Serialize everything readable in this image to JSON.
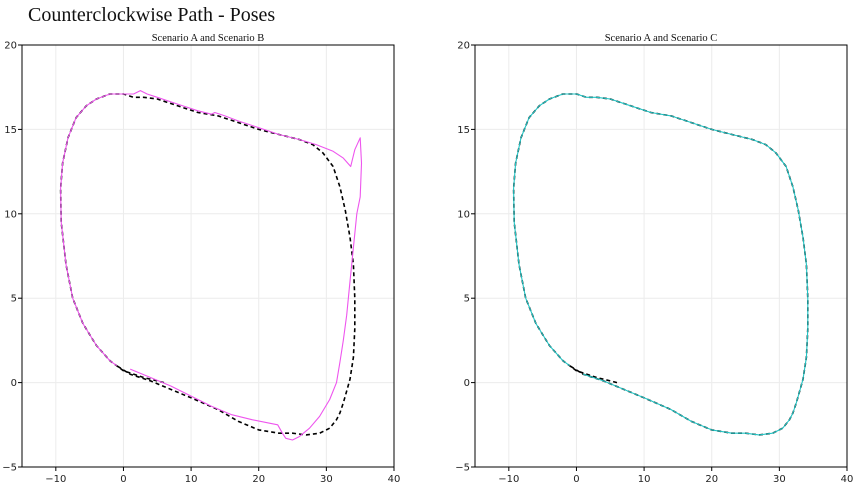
{
  "title": "Counterclockwise Path - Poses",
  "chart_data": [
    {
      "type": "line",
      "title": "Scenario A and Scenario B",
      "xlim": [
        -15,
        40
      ],
      "ylim": [
        -5,
        20
      ],
      "xticks": [
        -10,
        0,
        10,
        20,
        30,
        40
      ],
      "yticks": [
        -5,
        0,
        5,
        10,
        15,
        20
      ],
      "grid": true,
      "series": [
        {
          "color": "#000000",
          "style": "dashed",
          "x": [
            6,
            3,
            0,
            -2,
            -4,
            -6,
            -7.5,
            -8.5,
            -9.2,
            -9.3,
            -9,
            -8.2,
            -7,
            -5.5,
            -4,
            -2,
            0,
            1.5,
            3,
            5,
            8,
            11,
            14,
            17,
            20,
            23,
            26,
            28,
            29.5,
            31,
            32,
            32.8,
            33.5,
            34,
            34.2,
            34.2,
            34,
            33.5,
            33,
            32.5,
            32,
            31.5,
            30.5,
            29,
            27,
            25,
            23,
            20,
            17,
            14,
            10,
            7,
            4,
            1,
            -1
          ],
          "y": [
            0,
            0.3,
            0.7,
            1.3,
            2.2,
            3.5,
            5,
            7,
            9.5,
            11.5,
            13,
            14.5,
            15.7,
            16.4,
            16.8,
            17.1,
            17.1,
            16.9,
            16.9,
            16.8,
            16.4,
            16,
            15.8,
            15.4,
            15,
            14.7,
            14.4,
            14.1,
            13.6,
            12.8,
            11.6,
            10.2,
            8.6,
            7,
            5,
            3.2,
            1.5,
            0.2,
            -0.5,
            -1.2,
            -1.8,
            -2.2,
            -2.7,
            -3,
            -3.1,
            -3,
            -3,
            -2.8,
            -2.3,
            -1.6,
            -0.9,
            -0.4,
            0.1,
            0.5,
            1
          ]
        },
        {
          "color": "#ee55ee",
          "style": "solid",
          "x": [
            -1,
            -2,
            -4,
            -6,
            -7.5,
            -8.5,
            -9.2,
            -9.3,
            -9,
            -8.2,
            -7,
            -5.5,
            -4,
            -2,
            0,
            1.5,
            2.5,
            3.5,
            5,
            8,
            11,
            13,
            13.5,
            15,
            17,
            20,
            23,
            26,
            28.5,
            31,
            32.5,
            33.6,
            34.2,
            35,
            35.2,
            35,
            34.5,
            34,
            33.5,
            33,
            32.5,
            32,
            31.5,
            30.5,
            29,
            27.5,
            26,
            25,
            24,
            23.5,
            22.8,
            21.5,
            19,
            16,
            13,
            10,
            7,
            4,
            1
          ],
          "y": [
            1,
            1.3,
            2.2,
            3.5,
            5,
            7,
            9.5,
            11.5,
            13,
            14.5,
            15.7,
            16.4,
            16.8,
            17.1,
            17.1,
            17.1,
            17.3,
            17.1,
            16.9,
            16.5,
            16.1,
            15.9,
            16,
            15.8,
            15.5,
            15.1,
            14.7,
            14.4,
            14.1,
            13.7,
            13.3,
            12.8,
            13.8,
            14.5,
            13,
            11,
            10,
            8,
            6,
            4,
            2.5,
            1.2,
            0,
            -1,
            -2,
            -2.7,
            -3.2,
            -3.4,
            -3.3,
            -3,
            -2.5,
            -2.4,
            -2.2,
            -1.9,
            -1.4,
            -0.8,
            -0.2,
            0.3,
            0.8
          ]
        }
      ]
    },
    {
      "type": "line",
      "title": "Scenario A and Scenario C",
      "xlim": [
        -15,
        40
      ],
      "ylim": [
        -5,
        20
      ],
      "xticks": [
        -10,
        0,
        10,
        20,
        30,
        40
      ],
      "yticks": [
        -5,
        0,
        5,
        10,
        15,
        20
      ],
      "grid": true,
      "series": [
        {
          "color": "#000000",
          "style": "dashed",
          "x": [
            6,
            3,
            0,
            -2,
            -4,
            -6,
            -7.5,
            -8.5,
            -9.2,
            -9.3,
            -9,
            -8.2,
            -7,
            -5.5,
            -4,
            -2,
            0,
            1.5,
            3,
            5,
            8,
            11,
            14,
            17,
            20,
            23,
            26,
            28,
            29.5,
            31,
            32,
            32.8,
            33.5,
            34,
            34.2,
            34.2,
            34,
            33.5,
            33,
            32.5,
            32,
            31.5,
            30.5,
            29,
            27,
            25,
            23,
            20,
            17,
            14,
            10,
            7,
            4,
            1,
            -1
          ],
          "y": [
            0,
            0.3,
            0.7,
            1.3,
            2.2,
            3.5,
            5,
            7,
            9.5,
            11.5,
            13,
            14.5,
            15.7,
            16.4,
            16.8,
            17.1,
            17.1,
            16.9,
            16.9,
            16.8,
            16.4,
            16,
            15.8,
            15.4,
            15,
            14.7,
            14.4,
            14.1,
            13.6,
            12.8,
            11.6,
            10.2,
            8.6,
            7,
            5,
            3.2,
            1.5,
            0.2,
            -0.5,
            -1.2,
            -1.8,
            -2.2,
            -2.7,
            -3,
            -3.1,
            -3,
            -3,
            -2.8,
            -2.3,
            -1.6,
            -0.9,
            -0.4,
            0.1,
            0.5,
            1
          ]
        },
        {
          "color": "#22c4c4",
          "style": "solid",
          "x": [
            -1,
            -2,
            -4,
            -6,
            -7.5,
            -8.5,
            -9.2,
            -9.3,
            -9,
            -8.2,
            -7,
            -5.5,
            -4,
            -2,
            0,
            1.5,
            3,
            5,
            8,
            11,
            14,
            17,
            20,
            23,
            26,
            28,
            29.5,
            31,
            32,
            32.8,
            33.5,
            34,
            34.2,
            34.2,
            34,
            33.5,
            33,
            32.5,
            32,
            31.5,
            30.5,
            29,
            27,
            25,
            23,
            20,
            17,
            14,
            10,
            7,
            4,
            1
          ],
          "y": [
            1,
            1.3,
            2.2,
            3.5,
            5,
            7,
            9.5,
            11.5,
            13,
            14.5,
            15.7,
            16.4,
            16.8,
            17.1,
            17.1,
            16.9,
            16.9,
            16.8,
            16.4,
            16,
            15.8,
            15.4,
            15,
            14.7,
            14.4,
            14.1,
            13.6,
            12.8,
            11.6,
            10.2,
            8.6,
            7,
            5,
            3.2,
            1.5,
            0.2,
            -0.5,
            -1.2,
            -1.8,
            -2.2,
            -2.7,
            -3,
            -3.1,
            -3,
            -3,
            -2.8,
            -2.3,
            -1.6,
            -0.9,
            -0.4,
            0.1,
            0.5
          ]
        }
      ]
    }
  ]
}
